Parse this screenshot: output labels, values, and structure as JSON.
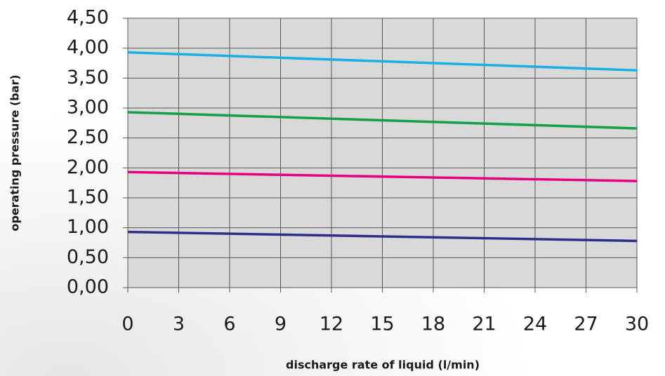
{
  "chart_data": {
    "type": "line",
    "x_label": "discharge rate of liquid (l/min)",
    "y_label": "operating pressure (bar)",
    "x": [
      0,
      30
    ],
    "series": [
      {
        "color": "#1aaee6",
        "values": [
          3.93,
          3.63
        ]
      },
      {
        "color": "#12a04b",
        "values": [
          2.93,
          2.66
        ]
      },
      {
        "color": "#e4007f",
        "values": [
          1.93,
          1.78
        ]
      },
      {
        "color": "#2c2e88",
        "values": [
          0.93,
          0.78
        ]
      }
    ],
    "xlim": [
      0,
      30
    ],
    "xticks": [
      0,
      3,
      6,
      9,
      12,
      15,
      18,
      21,
      24,
      27,
      30
    ],
    "ylim": [
      0,
      4.5
    ],
    "yticks": [
      {
        "value": 0,
        "label": "0,00"
      },
      {
        "value": 0.5,
        "label": "0,50"
      },
      {
        "value": 1,
        "label": "1,00"
      },
      {
        "value": 1.5,
        "label": "1,50"
      },
      {
        "value": 2,
        "label": "2,00"
      },
      {
        "value": 2.5,
        "label": "2,50"
      },
      {
        "value": 3,
        "label": "3,00"
      },
      {
        "value": 3.5,
        "label": "3,50"
      },
      {
        "value": 4,
        "label": "4,00"
      },
      {
        "value": 4.5,
        "label": "4,50"
      }
    ],
    "grid": true
  }
}
